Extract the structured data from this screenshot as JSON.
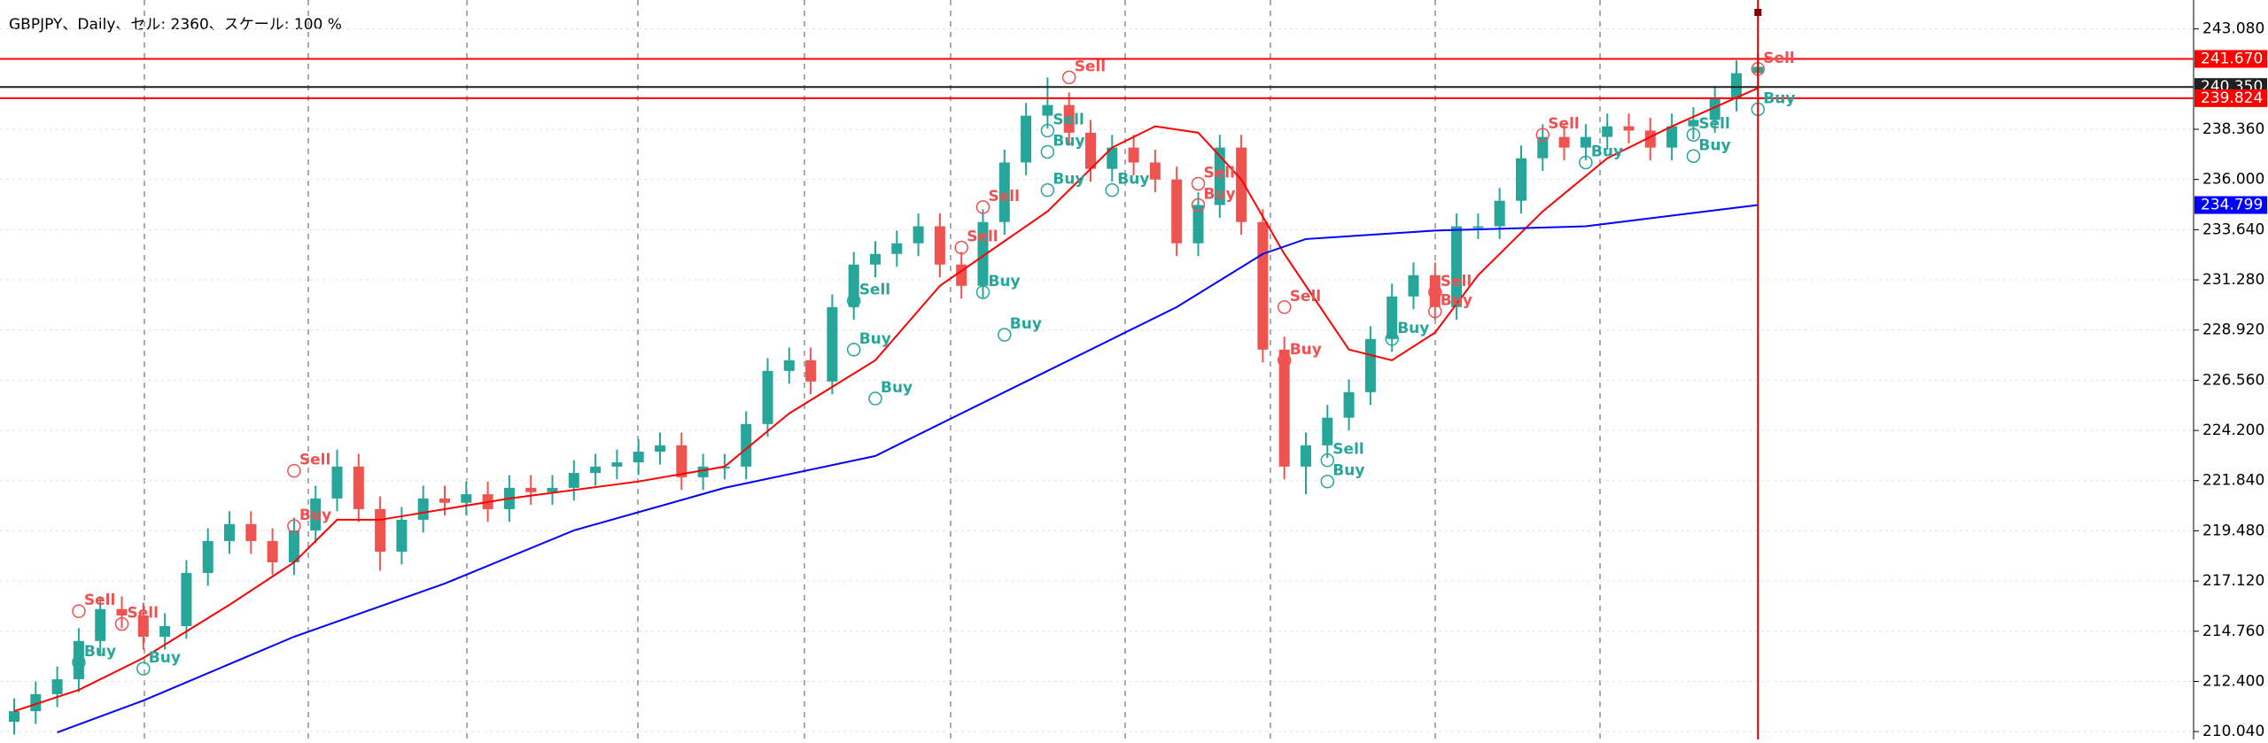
{
  "chart_data": {
    "type": "candlestick",
    "title": "GBPJPY、Daily、セル: 2360、スケール: 100 %",
    "ylim": [
      209.67,
      244.44
    ],
    "yticks": [
      {
        "value": 210.04,
        "label": "210.040"
      },
      {
        "value": 212.4,
        "label": "212.400"
      },
      {
        "value": 214.76,
        "label": "214.760"
      },
      {
        "value": 217.12,
        "label": "217.120"
      },
      {
        "value": 219.48,
        "label": "219.480"
      },
      {
        "value": 221.84,
        "label": "221.840"
      },
      {
        "value": 224.2,
        "label": "224.200"
      },
      {
        "value": 226.56,
        "label": "226.560"
      },
      {
        "value": 228.92,
        "label": "228.920"
      },
      {
        "value": 231.28,
        "label": "231.280"
      },
      {
        "value": 233.64,
        "label": "233.640"
      },
      {
        "value": 236.0,
        "label": "236.000"
      },
      {
        "value": 238.36,
        "label": "238.360"
      },
      {
        "value": 243.08,
        "label": "243.080"
      }
    ],
    "grid": true,
    "up_color": "#26a69a",
    "down_color": "#ef5350",
    "open": [
      210.5,
      211.0,
      211.8,
      212.5,
      214.3,
      215.8,
      215.5,
      214.5,
      215.0,
      217.5,
      219.0,
      219.8,
      219.0,
      218.0,
      219.5,
      221.0,
      222.5,
      220.5,
      218.5,
      220.0,
      221.0,
      220.8,
      221.2,
      220.5,
      221.5,
      221.3,
      221.5,
      222.2,
      222.5,
      222.7,
      223.2,
      223.5,
      222.0,
      222.5,
      222.5,
      224.5,
      227.0,
      227.5,
      226.5,
      230.0,
      232.0,
      232.5,
      233.0,
      233.8,
      232.0,
      231.0,
      234.0,
      236.8,
      239.0,
      239.5,
      238.2,
      236.5,
      237.5,
      236.8,
      236.0,
      233.0,
      234.8,
      237.5,
      234.0,
      228.0,
      222.5,
      223.5,
      224.8,
      226.0,
      228.5,
      230.5,
      231.5,
      230.0,
      233.8,
      233.8,
      235.0,
      237.0,
      238.0,
      237.5,
      238.0,
      238.5,
      238.3,
      237.5,
      238.5,
      238.8,
      239.8,
      241.0
    ],
    "high": [
      211.6,
      212.4,
      213.1,
      214.9,
      216.4,
      216.4,
      216.1,
      215.6,
      218.1,
      219.6,
      220.4,
      220.4,
      219.6,
      220.1,
      221.6,
      223.3,
      223.1,
      221.1,
      220.6,
      221.6,
      221.6,
      221.8,
      221.8,
      222.1,
      222.1,
      222.1,
      222.8,
      223.1,
      223.3,
      223.8,
      224.1,
      224.1,
      223.1,
      223.1,
      225.1,
      227.6,
      228.1,
      228.1,
      230.6,
      232.6,
      233.1,
      233.6,
      234.4,
      234.4,
      232.6,
      234.6,
      237.4,
      239.6,
      240.8,
      240.1,
      238.8,
      238.1,
      238.1,
      237.4,
      236.6,
      235.4,
      238.1,
      238.1,
      234.6,
      228.6,
      224.1,
      225.4,
      226.6,
      229.1,
      231.1,
      232.1,
      232.1,
      234.4,
      234.4,
      235.6,
      237.6,
      238.6,
      238.6,
      238.6,
      239.1,
      239.1,
      238.9,
      239.1,
      239.4,
      240.4,
      241.6,
      241.9
    ],
    "low": [
      209.9,
      210.4,
      211.2,
      211.9,
      213.7,
      214.9,
      213.9,
      213.9,
      214.4,
      216.9,
      218.4,
      218.4,
      217.4,
      217.4,
      218.9,
      220.4,
      219.9,
      217.6,
      217.9,
      219.4,
      220.2,
      220.2,
      219.9,
      219.9,
      220.7,
      220.7,
      220.9,
      221.6,
      221.9,
      222.1,
      222.6,
      221.4,
      221.4,
      221.9,
      221.9,
      223.9,
      226.4,
      225.9,
      225.9,
      229.4,
      231.4,
      231.9,
      232.4,
      231.4,
      230.4,
      230.4,
      233.4,
      236.2,
      238.4,
      237.6,
      235.9,
      235.9,
      236.2,
      235.4,
      232.4,
      232.4,
      234.2,
      233.4,
      227.4,
      221.9,
      221.2,
      222.9,
      224.2,
      225.4,
      227.9,
      229.9,
      229.4,
      229.4,
      233.2,
      233.2,
      234.4,
      236.4,
      236.9,
      236.9,
      237.4,
      237.7,
      236.9,
      236.9,
      237.9,
      238.2,
      239.2,
      240.4
    ],
    "close": [
      211.0,
      211.8,
      212.5,
      214.3,
      215.8,
      215.5,
      214.5,
      215.0,
      217.5,
      219.0,
      219.8,
      219.0,
      218.0,
      219.5,
      221.0,
      222.5,
      220.5,
      218.5,
      220.0,
      221.0,
      220.8,
      221.2,
      220.5,
      221.5,
      221.3,
      221.5,
      222.2,
      222.5,
      222.7,
      223.2,
      223.5,
      222.0,
      222.5,
      222.5,
      224.5,
      227.0,
      227.5,
      226.5,
      230.0,
      232.0,
      232.5,
      233.0,
      233.8,
      232.0,
      231.0,
      234.0,
      236.8,
      239.0,
      239.5,
      238.2,
      236.5,
      237.5,
      236.8,
      236.0,
      233.0,
      234.8,
      237.5,
      234.0,
      228.0,
      222.5,
      223.5,
      224.8,
      226.0,
      228.5,
      230.5,
      231.5,
      230.0,
      233.8,
      233.8,
      235.0,
      237.0,
      238.0,
      237.5,
      238.0,
      238.5,
      238.3,
      237.5,
      238.5,
      238.8,
      239.8,
      241.0,
      241.3
    ],
    "moving_averages": [
      {
        "color": "#ff0000",
        "x": [
          0,
          3,
          6,
          10,
          13,
          15,
          17,
          23,
          29,
          33,
          36,
          40,
          43,
          48,
          51,
          53,
          55,
          57,
          59,
          61,
          62,
          64,
          66,
          68,
          71,
          74,
          77,
          81
        ],
        "values": [
          211.0,
          212.0,
          213.5,
          216.0,
          218.0,
          220.0,
          220.0,
          221.0,
          221.8,
          222.5,
          225.0,
          227.5,
          231.0,
          234.5,
          237.5,
          238.5,
          238.2,
          236.0,
          232.5,
          229.5,
          228.0,
          227.5,
          228.8,
          231.5,
          234.5,
          237.0,
          238.5,
          240.3
        ]
      },
      {
        "color": "#0000ff",
        "x": [
          2,
          6,
          13,
          20,
          26,
          33,
          40,
          47,
          54,
          58,
          60,
          66,
          73,
          81
        ],
        "values": [
          210.0,
          211.5,
          214.5,
          217.0,
          219.5,
          221.5,
          223.0,
          226.5,
          230.0,
          232.5,
          233.2,
          233.6,
          233.8,
          234.8
        ],
        "last_label": {
          "value": 234.799,
          "label": "234.799"
        }
      }
    ],
    "levels": [
      {
        "value": 241.67,
        "label": "241.670",
        "color": "#ff0000"
      },
      {
        "value": 240.35,
        "label": "240.350",
        "color": "#202020"
      },
      {
        "value": 239.824,
        "label": "239.824",
        "color": "#ff0000"
      }
    ],
    "annotations": [
      {
        "text": "Sell",
        "index": 3,
        "price": 216.2
      },
      {
        "text": "Buy",
        "index": 3,
        "price": 213.8
      },
      {
        "text": "Sell",
        "index": 5,
        "price": 215.6
      },
      {
        "text": "Buy",
        "index": 6,
        "price": 213.5
      },
      {
        "text": "Sell",
        "index": 13,
        "price": 222.8
      },
      {
        "text": "Buy",
        "index": 13,
        "price": 220.2
      },
      {
        "text": "Sell",
        "index": 39,
        "price": 230.8
      },
      {
        "text": "Buy",
        "index": 39,
        "price": 228.5
      },
      {
        "text": "Buy",
        "index": 40,
        "price": 226.2
      },
      {
        "text": "Sell",
        "index": 44,
        "price": 233.3
      },
      {
        "text": "Sell",
        "index": 45,
        "price": 235.2
      },
      {
        "text": "Buy",
        "index": 45,
        "price": 231.2
      },
      {
        "text": "Buy",
        "index": 46,
        "price": 229.2
      },
      {
        "text": "Sell",
        "index": 49,
        "price": 241.3
      },
      {
        "text": "Sell",
        "index": 48,
        "price": 238.8
      },
      {
        "text": "Buy",
        "index": 48,
        "price": 237.8
      },
      {
        "text": "Buy",
        "index": 48,
        "price": 236.0
      },
      {
        "text": "Buy",
        "index": 51,
        "price": 236.0
      },
      {
        "text": "Sell",
        "index": 55,
        "price": 236.3
      },
      {
        "text": "Buy",
        "index": 55,
        "price": 235.3
      },
      {
        "text": "Sell",
        "index": 59,
        "price": 230.5
      },
      {
        "text": "Buy",
        "index": 59,
        "price": 228.0
      },
      {
        "text": "Sell",
        "index": 61,
        "price": 223.3
      },
      {
        "text": "Buy",
        "index": 61,
        "price": 222.3
      },
      {
        "text": "Buy",
        "index": 64,
        "price": 229.0
      },
      {
        "text": "Buy",
        "index": 66,
        "price": 230.3
      },
      {
        "text": "Sell",
        "index": 66,
        "price": 231.2
      },
      {
        "text": "Sell",
        "index": 71,
        "price": 238.6
      },
      {
        "text": "Buy",
        "index": 73,
        "price": 237.3
      },
      {
        "text": "Sell",
        "index": 78,
        "price": 238.6
      },
      {
        "text": "Buy",
        "index": 78,
        "price": 237.6
      },
      {
        "text": "Sell",
        "index": 81,
        "price": 241.7
      },
      {
        "text": "Buy",
        "index": 81,
        "price": 239.8
      }
    ]
  }
}
